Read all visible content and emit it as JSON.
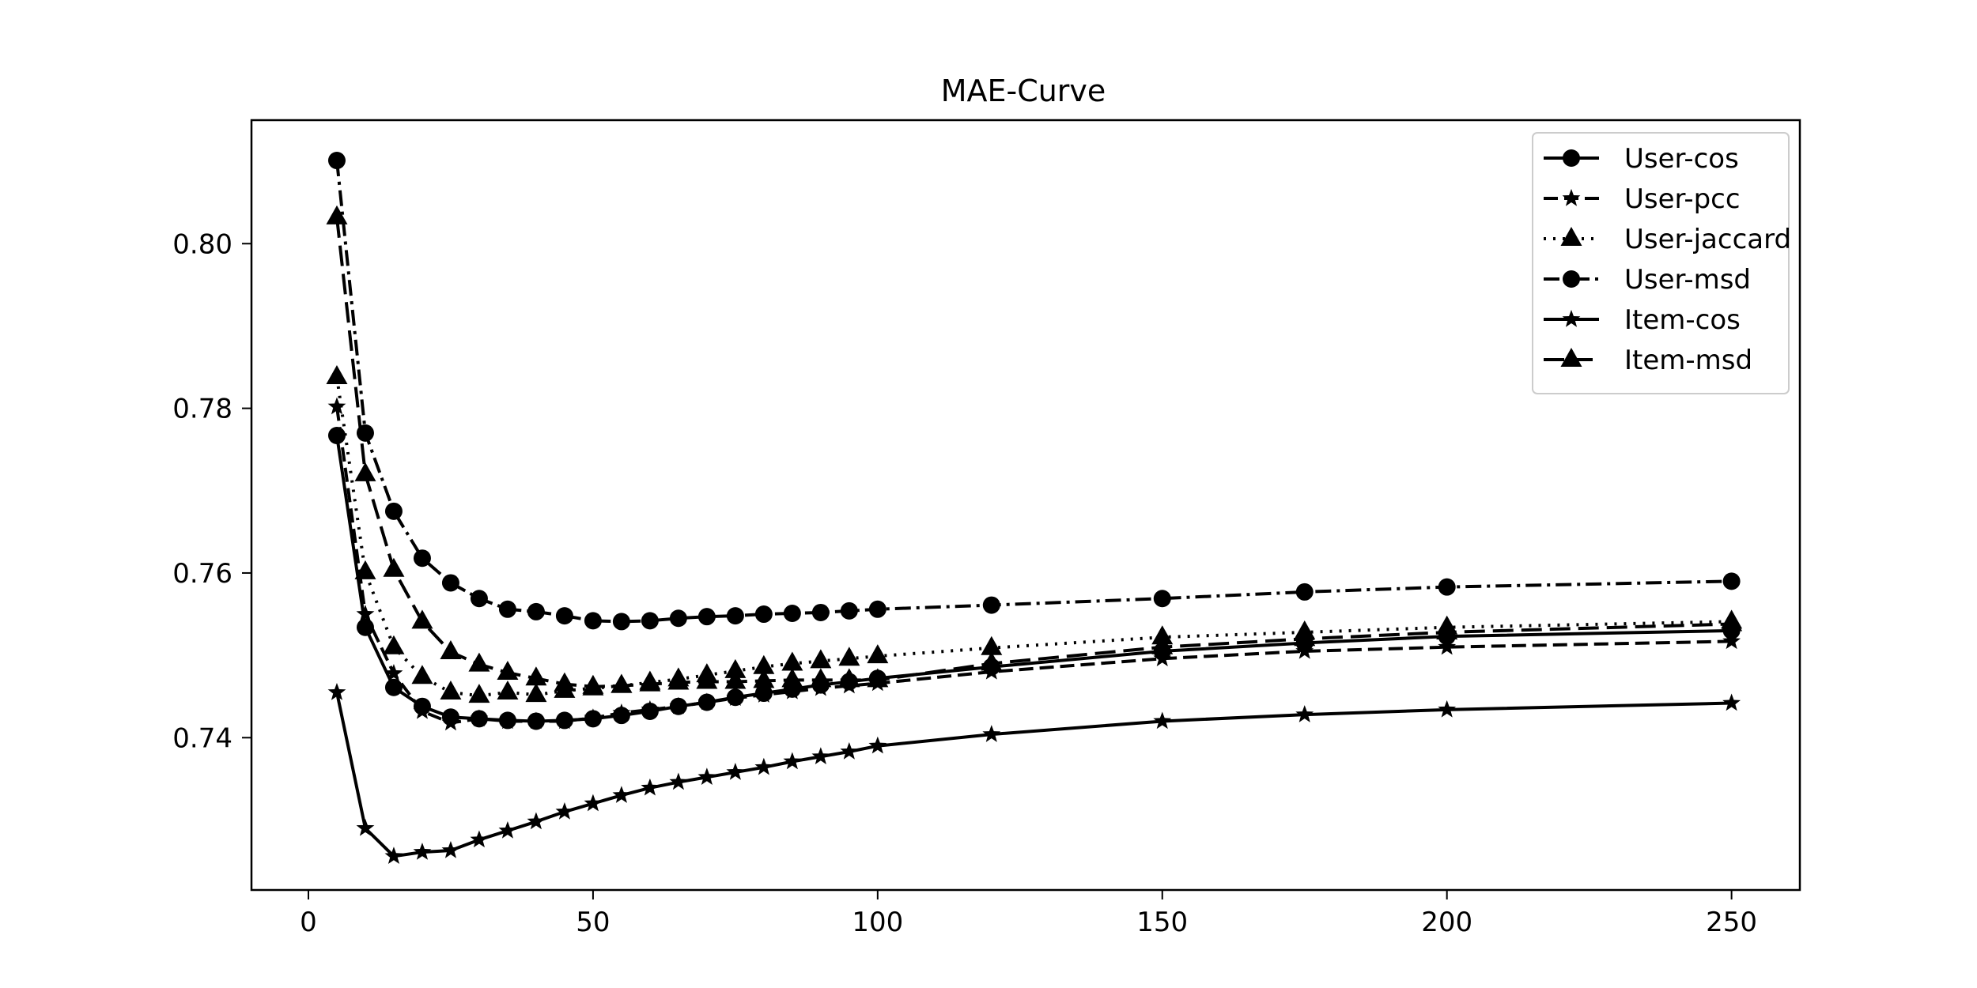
{
  "chart_data": {
    "type": "line",
    "title": "MAE-Curve",
    "xlabel": "",
    "ylabel": "",
    "xlim": [
      -10,
      262
    ],
    "ylim": [
      0.7215,
      0.815
    ],
    "xticks": [
      0,
      50,
      100,
      150,
      200,
      250
    ],
    "xtick_labels": [
      "0",
      "50",
      "100",
      "150",
      "200",
      "250"
    ],
    "yticks": [
      0.74,
      0.76,
      0.78,
      0.8
    ],
    "ytick_labels": [
      "0.74",
      "0.76",
      "0.78",
      "0.80"
    ],
    "grid": false,
    "legend_position": "top-right",
    "x": [
      5,
      10,
      15,
      20,
      25,
      30,
      35,
      40,
      45,
      50,
      55,
      60,
      65,
      70,
      75,
      80,
      85,
      90,
      95,
      100,
      120,
      150,
      175,
      200,
      250
    ],
    "series": [
      {
        "name": "User-cos",
        "color": "#000000",
        "linestyle": "solid",
        "marker": "circle",
        "values": [
          0.7767,
          0.7534,
          0.7461,
          0.7438,
          0.7425,
          0.7423,
          0.7421,
          0.742,
          0.7421,
          0.7423,
          0.7427,
          0.7432,
          0.7438,
          0.7443,
          0.7449,
          0.7454,
          0.7459,
          0.7464,
          0.7468,
          0.7472,
          0.7486,
          0.7505,
          0.7515,
          0.7523,
          0.753
        ]
      },
      {
        "name": "User-pcc",
        "color": "#000000",
        "linestyle": "dashed",
        "marker": "star",
        "values": [
          0.7802,
          0.755,
          0.7478,
          0.7432,
          0.7418,
          0.7423,
          0.742,
          0.742,
          0.742,
          0.7424,
          0.743,
          0.7434,
          0.7438,
          0.7443,
          0.7448,
          0.7452,
          0.7456,
          0.746,
          0.7463,
          0.7466,
          0.748,
          0.7496,
          0.7505,
          0.751,
          0.7517
        ]
      },
      {
        "name": "User-jaccard",
        "color": "#000000",
        "linestyle": "dotted",
        "marker": "triangle",
        "values": [
          0.7838,
          0.7601,
          0.751,
          0.7474,
          0.7455,
          0.7451,
          0.7455,
          0.7452,
          0.7457,
          0.746,
          0.7463,
          0.7467,
          0.7471,
          0.7476,
          0.7481,
          0.7486,
          0.749,
          0.7493,
          0.7496,
          0.7499,
          0.7509,
          0.7522,
          0.7528,
          0.7534,
          0.7541
        ]
      },
      {
        "name": "User-msd",
        "color": "#000000",
        "linestyle": "dashdot",
        "marker": "circle",
        "values": [
          0.8101,
          0.777,
          0.7675,
          0.7618,
          0.7588,
          0.7569,
          0.7556,
          0.7553,
          0.7548,
          0.7542,
          0.7541,
          0.7542,
          0.7545,
          0.7547,
          0.7548,
          0.755,
          0.7551,
          0.7552,
          0.7554,
          0.7556,
          0.7561,
          0.7569,
          0.7577,
          0.7583,
          0.759
        ]
      },
      {
        "name": "Item-cos",
        "color": "#000000",
        "linestyle": "solid",
        "marker": "star",
        "values": [
          0.7455,
          0.729,
          0.7256,
          0.7261,
          0.7263,
          0.7276,
          0.7287,
          0.7298,
          0.731,
          0.732,
          0.733,
          0.7339,
          0.7346,
          0.7352,
          0.7358,
          0.7364,
          0.7371,
          0.7377,
          0.7383,
          0.739,
          0.7404,
          0.742,
          0.7428,
          0.7434,
          0.7442
        ]
      },
      {
        "name": "Item-msd",
        "color": "#000000",
        "linestyle": "longdash",
        "marker": "triangle",
        "values": [
          0.8032,
          0.772,
          0.7604,
          0.7541,
          0.7504,
          0.7489,
          0.7479,
          0.7472,
          0.7465,
          0.7462,
          0.7463,
          0.7465,
          0.7467,
          0.7468,
          0.7468,
          0.7469,
          0.747,
          0.747,
          0.747,
          0.747,
          0.749,
          0.751,
          0.752,
          0.7528,
          0.7538
        ]
      }
    ]
  }
}
